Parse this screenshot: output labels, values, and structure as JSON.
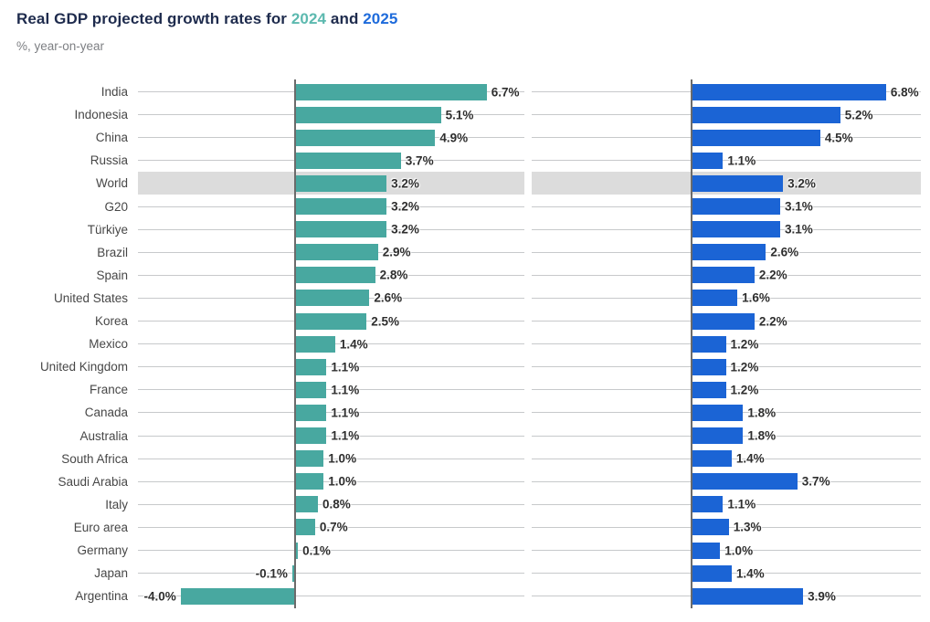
{
  "header": {
    "title_prefix": "Real GDP projected growth rates for ",
    "title_year1": "2024",
    "title_conjunction": " and ",
    "title_year2": "2025",
    "subtitle": "%, year-on-year"
  },
  "colors": {
    "title_text": "#1e2b4d",
    "title_year1": "#5cb9af",
    "title_year2": "#1e6bdb",
    "bar_2024": "#48a8a0",
    "bar_2025": "#1b64d5",
    "gridline": "#c7c9cb",
    "axis_line": "#6b6b6b",
    "highlight_band": "#dcdcdc",
    "category_text": "#474747",
    "value_text": "#2e2e2e"
  },
  "chart_data": {
    "type": "bar",
    "orientation": "horizontal",
    "title": "Real GDP projected growth rates for 2024 and 2025",
    "subtitle": "%, year-on-year",
    "unit": "%",
    "value_suffix": "%",
    "grid": true,
    "value_labels": true,
    "layout": "two side-by-side panels, one per series, shared category axis on left",
    "xlim": [
      -5.5,
      8.2
    ],
    "highlighted_category": "World",
    "categories": [
      "India",
      "Indonesia",
      "China",
      "Russia",
      "World",
      "G20",
      "Türkiye",
      "Brazil",
      "Spain",
      "United States",
      "Korea",
      "Mexico",
      "United Kingdom",
      "France",
      "Canada",
      "Australia",
      "South Africa",
      "Saudi Arabia",
      "Italy",
      "Euro area",
      "Germany",
      "Japan",
      "Argentina"
    ],
    "series": [
      {
        "name": "2024",
        "color": "#48a8a0",
        "values": [
          6.7,
          5.1,
          4.9,
          3.7,
          3.2,
          3.2,
          3.2,
          2.9,
          2.8,
          2.6,
          2.5,
          1.4,
          1.1,
          1.1,
          1.1,
          1.1,
          1.0,
          1.0,
          0.8,
          0.7,
          0.1,
          -0.1,
          -4.0
        ]
      },
      {
        "name": "2025",
        "color": "#1b64d5",
        "values": [
          6.8,
          5.2,
          4.5,
          1.1,
          3.2,
          3.1,
          3.1,
          2.6,
          2.2,
          1.6,
          2.2,
          1.2,
          1.2,
          1.2,
          1.8,
          1.8,
          1.4,
          3.7,
          1.1,
          1.3,
          1.0,
          1.4,
          3.9
        ]
      }
    ]
  }
}
